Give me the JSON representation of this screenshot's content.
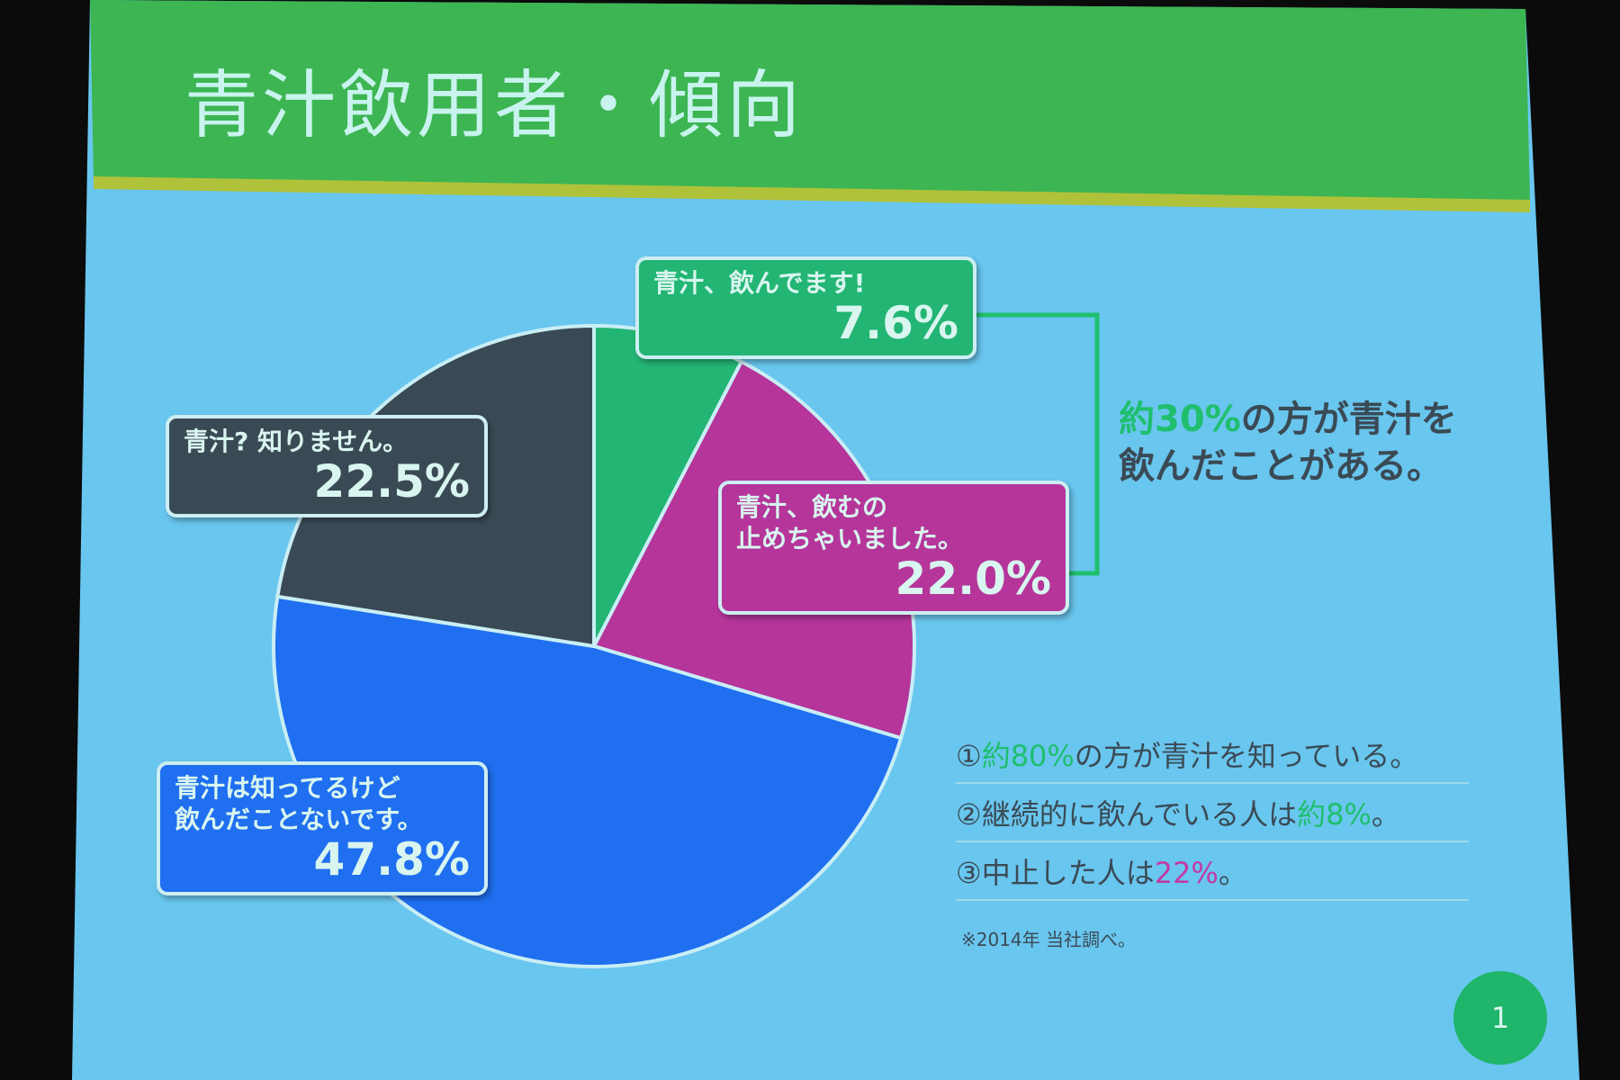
{
  "slide": {
    "title": "青汁飲用者・傾向",
    "annotation": [
      {
        "text": "約30%",
        "color": "#1fbf6e"
      },
      {
        "text": "の方が青汁を\n飲んだことがある。",
        "color": "#3a4a55"
      }
    ],
    "notes": [
      [
        {
          "text": "①",
          "color": "#3a4a55"
        },
        {
          "text": "約80%",
          "color": "#1fbf6e"
        },
        {
          "text": "の方が青汁を知っている。",
          "color": "#3a4a55"
        }
      ],
      [
        {
          "text": "②継続的に飲んでいる人は",
          "color": "#3a4a55"
        },
        {
          "text": "約8%",
          "color": "#1fbf6e"
        },
        {
          "text": "。",
          "color": "#3a4a55"
        }
      ],
      [
        {
          "text": "③中止した人は",
          "color": "#3a4a55"
        },
        {
          "text": "22%",
          "color": "#c23aa6"
        },
        {
          "text": "。",
          "color": "#3a4a55"
        }
      ]
    ],
    "footnote": "※2014年 当社調べ。",
    "page_number": "1"
  },
  "chart_data": {
    "type": "pie",
    "categories": [
      "青汁、飲んでます!",
      "青汁、飲むの\n止めちゃいました。",
      "青汁は知ってるけど\n飲んだことないです。",
      "青汁? 知りません。"
    ],
    "values": [
      7.6,
      22.0,
      47.8,
      22.5
    ],
    "value_labels": [
      "7.6%",
      "22.0%",
      "47.8%",
      "22.5%"
    ],
    "colors": [
      "#22b573",
      "#b5359a",
      "#1f6ff0",
      "#3a4a55"
    ]
  }
}
